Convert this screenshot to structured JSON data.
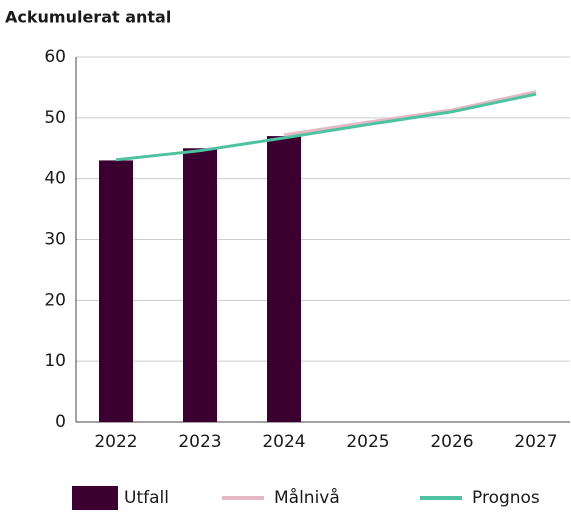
{
  "chart_data": {
    "type": "bar",
    "title": "Ackumulerat antal",
    "categories": [
      "2022",
      "2023",
      "2024",
      "2025",
      "2026",
      "2027"
    ],
    "series": [
      {
        "name": "Utfall",
        "type": "bar",
        "color": "#3b0030",
        "values": [
          43,
          45,
          47,
          null,
          null,
          null
        ]
      },
      {
        "name": "Målnivå",
        "type": "line",
        "color": "#e4b9c3",
        "values": [
          null,
          null,
          47.2,
          49.3,
          51.3,
          54.3
        ]
      },
      {
        "name": "Prognos",
        "type": "line",
        "color": "#4fc3a1",
        "values": [
          43.1,
          44.6,
          46.7,
          48.9,
          51,
          53.9
        ]
      }
    ],
    "ylim": [
      0,
      60
    ],
    "yticks": [
      0,
      10,
      20,
      30,
      40,
      50,
      60
    ],
    "grid": true,
    "legend": "bottom"
  }
}
